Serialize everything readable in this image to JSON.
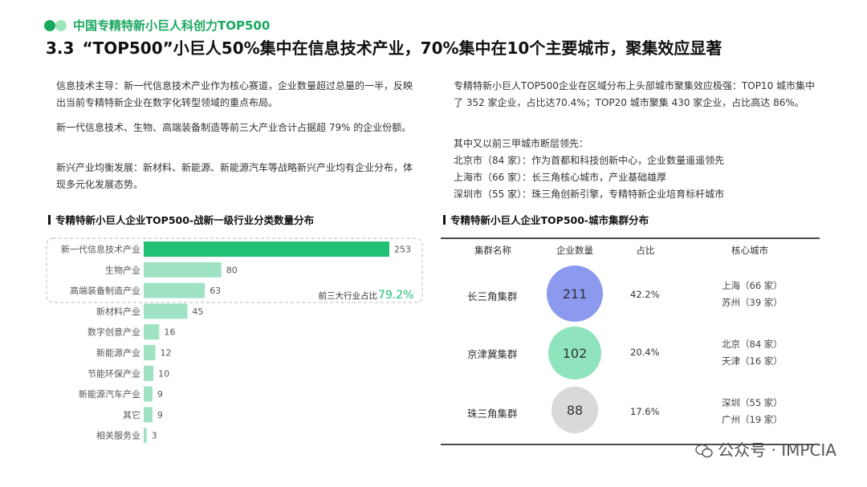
{
  "header": {
    "text": "中国专精特新小巨人科创力TOP500"
  },
  "title": {
    "number": "3.3",
    "text": "“TOP500”小巨人50%集中在信息技术产业，70%集中在10个主要城市，聚集效应显著"
  },
  "left_paras": [
    "信息技术主导：新一代信息技术产业作为核心赛道，企业数量超过总量的一半，反映出当前专精特新企业在数字化转型领域的重点布局。",
    "新一代信息技术、生物、高端装备制造等前三大产业合计占据超 79% 的企业份额。",
    "新兴产业均衡发展：新材料、新能源、新能源汽车等战略新兴产业均有企业分布，体现多元化发展态势。"
  ],
  "right_paras": {
    "intro": "专精特新小巨人TOP500企业在区域分布上头部城市聚集效应极强：TOP10 城市集中了 352 家企业，占比达70.4%；TOP20 城市聚集 430 家企业，占比高达 86%。",
    "lead": "其中又以前三甲城市断层领先：",
    "cities": [
      "北京市（84 家）：作为首都和科技创新中心，企业数量遥遥领先",
      "上海市（66 家）：长三角核心城市，产业基础雄厚",
      "深圳市（55 家）：珠三角创新引擎，专精特新企业培育标杆城市"
    ]
  },
  "chart_section_title": "专精特新小巨人企业TOP500-战新一级行业分类数量分布",
  "table_section_title": "专精特新小巨人企业TOP500-城市集群分布",
  "chart_data": {
    "type": "bar",
    "orientation": "horizontal",
    "categories": [
      "新一代信息技术产业",
      "生物产业",
      "高端装备制造产业",
      "新材料产业",
      "数字创意产业",
      "新能源产业",
      "节能环保产业",
      "新能源汽车产业",
      "其它",
      "相关服务业"
    ],
    "values": [
      253,
      80,
      63,
      45,
      16,
      12,
      10,
      9,
      9,
      3
    ],
    "xlim": [
      0,
      253
    ],
    "annotation": {
      "label": "前三大行业占比",
      "value": "79.2%"
    },
    "colors": {
      "top": "#22c074",
      "rest": "#9fe3c4"
    }
  },
  "table": {
    "headers": [
      "集群名称",
      "企业数量",
      "占比",
      "核心城市"
    ],
    "rows": [
      {
        "name": "长三角集群",
        "count": "211",
        "share": "42.2%",
        "cities": [
          "上海（66 家）",
          "苏州（39 家）"
        ],
        "color": "#8b99ee"
      },
      {
        "name": "京津冀集群",
        "count": "102",
        "share": "20.4%",
        "cities": [
          "北京（84 家）",
          "天津（16 家）"
        ],
        "color": "#8fe3bd"
      },
      {
        "name": "珠三角集群",
        "count": "88",
        "share": "17.6%",
        "cities": [
          "深圳（55 家）",
          "广州（19 家）"
        ],
        "color": "#d9d9d9"
      }
    ]
  },
  "footer": {
    "text": "公众号 · IMPCIA"
  }
}
